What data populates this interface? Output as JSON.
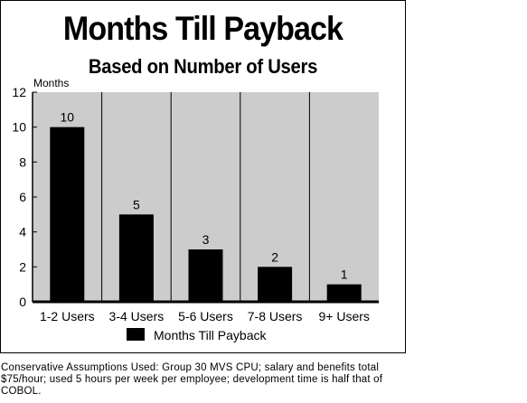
{
  "chart_data": {
    "type": "bar",
    "title": "Months Till Payback",
    "subtitle": "Based on Number of Users",
    "ylabel": "Months",
    "xlabel": "",
    "categories": [
      "1-2 Users",
      "3-4 Users",
      "5-6 Users",
      "7-8 Users",
      "9+ Users"
    ],
    "series": [
      {
        "name": "Months Till Payback",
        "values": [
          10,
          5,
          3,
          2,
          1
        ]
      }
    ],
    "ylim": [
      0,
      12
    ],
    "yticks": [
      "0",
      "2",
      "4",
      "6",
      "8",
      "10",
      "12"
    ],
    "data_labels": [
      "10",
      "5",
      "3",
      "2",
      "1"
    ],
    "grid": true,
    "legend_position": "bottom",
    "colors": {
      "bar": "#000000",
      "plot_background": "#cccccc",
      "grid": "#000000"
    }
  },
  "footnote": "Conservative Assumptions Used: Group 30 MVS CPU; salary and benefits total $75/hour; used 5 hours per week per employee; development time is half that of COBOL."
}
